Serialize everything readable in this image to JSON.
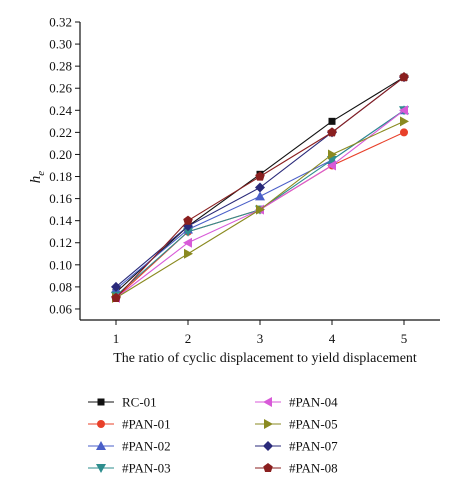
{
  "chart_data": {
    "type": "line",
    "ylabel_main": "h",
    "ylabel_sub": "e",
    "xlabel": "The ratio of cyclic displacement to yield displacement",
    "x": [
      1,
      2,
      3,
      4,
      5
    ],
    "xlim": [
      0.5,
      5.5
    ],
    "ylim": [
      0.05,
      0.32
    ],
    "yticks": [
      "0.06",
      "0.08",
      "0.10",
      "0.12",
      "0.14",
      "0.16",
      "0.18",
      "0.20",
      "0.22",
      "0.24",
      "0.26",
      "0.28",
      "0.30",
      "0.32"
    ],
    "xticks": [
      "1",
      "2",
      "3",
      "4",
      "5"
    ],
    "grid": false,
    "legend_placement": "bottom",
    "series": [
      {
        "name": "RC-01",
        "color": "#111111",
        "marker": "square",
        "values": [
          0.075,
          0.135,
          0.182,
          0.23,
          0.27
        ]
      },
      {
        "name": "#PAN-01",
        "color": "#e8402a",
        "marker": "circle",
        "values": [
          0.07,
          0.13,
          0.15,
          0.19,
          0.22
        ]
      },
      {
        "name": "#PAN-02",
        "color": "#4a5fc8",
        "marker": "triangle-up",
        "values": [
          0.078,
          0.132,
          0.162,
          0.195,
          0.24
        ]
      },
      {
        "name": "#PAN-03",
        "color": "#2e8e8e",
        "marker": "triangle-down",
        "values": [
          0.072,
          0.13,
          0.15,
          0.195,
          0.24
        ]
      },
      {
        "name": "#PAN-04",
        "color": "#d85ad8",
        "marker": "triangle-left",
        "values": [
          0.07,
          0.12,
          0.15,
          0.19,
          0.24
        ]
      },
      {
        "name": "#PAN-05",
        "color": "#8a8a20",
        "marker": "triangle-right",
        "values": [
          0.07,
          0.11,
          0.15,
          0.2,
          0.23
        ]
      },
      {
        "name": "#PAN-07",
        "color": "#2a2a7a",
        "marker": "diamond",
        "values": [
          0.08,
          0.135,
          0.17,
          0.22,
          0.27
        ]
      },
      {
        "name": "#PAN-08",
        "color": "#8a1f1f",
        "marker": "pentagon",
        "values": [
          0.07,
          0.14,
          0.18,
          0.22,
          0.27
        ]
      }
    ]
  }
}
